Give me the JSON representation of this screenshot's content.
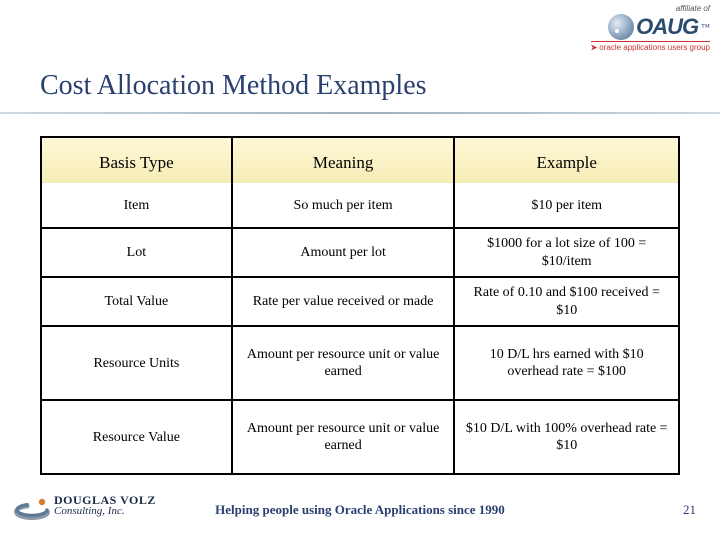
{
  "top": {
    "affiliate": "affiliate of",
    "oaug": "OAUG",
    "oaug_sub": "oracle applications users group"
  },
  "title": "Cost Allocation Method Examples",
  "table": {
    "headers": {
      "c1": "Basis Type",
      "c2": "Meaning",
      "c3": "Example"
    },
    "rows": [
      {
        "c1": "Item",
        "c2": "So much per item",
        "c3": "$10 per item",
        "tall": false
      },
      {
        "c1": "Lot",
        "c2": "Amount per lot",
        "c3": "$1000 for a lot size of 100 = $10/item",
        "tall": false
      },
      {
        "c1": "Total Value",
        "c2": "Rate per value received or made",
        "c3": "Rate of 0.10 and $100 received = $10",
        "tall": false
      },
      {
        "c1": "Resource Units",
        "c2": "Amount per resource unit or value earned",
        "c3": "10 D/L hrs earned with $10 overhead rate = $100",
        "tall": true
      },
      {
        "c1": "Resource Value",
        "c2": "Amount per resource unit or value earned",
        "c3": "$10 D/L with 100% overhead rate = $10",
        "tall": true
      }
    ]
  },
  "footer": {
    "volz1": "DOUGLAS VOLZ",
    "volz2": "Consulting, Inc.",
    "center": "Helping people using Oracle Applications since 1990",
    "page": "21"
  },
  "colors": {
    "title": "#2a4070",
    "header_bg_top": "#fff8d8",
    "header_bg_bottom": "#f6edb6",
    "border": "#000000"
  }
}
